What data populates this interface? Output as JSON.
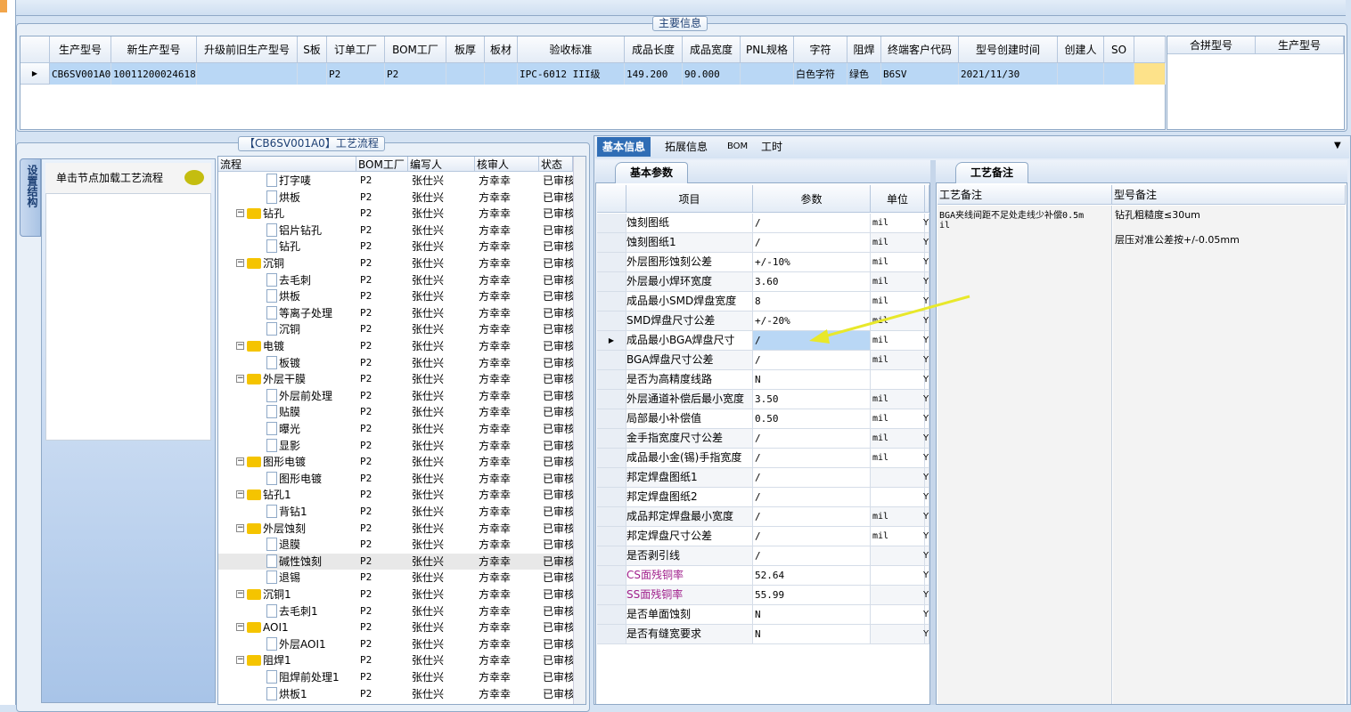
{
  "main_info": {
    "title": "主要信息",
    "columns": [
      "生产型号",
      "新生产型号",
      "升级前旧生产型号",
      "S板",
      "订单工厂",
      "BOM工厂",
      "板厚",
      "板材",
      "验收标准",
      "成品长度",
      "成品宽度",
      "PNL规格",
      "字符",
      "阻焊",
      "终端客户代码",
      "型号创建时间",
      "创建人",
      "SO",
      ""
    ],
    "row": [
      "CB6SV001A0",
      "10011200024618",
      "",
      "",
      "P2",
      "P2",
      "",
      "",
      "IPC-6012 III级",
      "149.200",
      "90.000",
      "",
      "白色字符",
      "绿色",
      "B6SV",
      "2021/11/30",
      "",
      "",
      ""
    ],
    "merge_columns": [
      "合拼型号",
      "生产型号"
    ]
  },
  "flow": {
    "title": "【CB6SV001A0】工艺流程",
    "side_tab": "设置结构",
    "hint": "单击节点加载工艺流程",
    "columns": [
      "流程",
      "BOM工厂",
      "编写人",
      "核审人",
      "状态"
    ],
    "rows": [
      {
        "name": "打字唛",
        "level": 2,
        "folder": false,
        "bom": "P2",
        "writer": "张仕兴",
        "reviewer": "方幸幸",
        "status": "已审核"
      },
      {
        "name": "烘板",
        "level": 2,
        "folder": false,
        "bom": "P2",
        "writer": "张仕兴",
        "reviewer": "方幸幸",
        "status": "已审核"
      },
      {
        "name": "钻孔",
        "level": 1,
        "folder": true,
        "bom": "P2",
        "writer": "张仕兴",
        "reviewer": "方幸幸",
        "status": "已审核"
      },
      {
        "name": "铝片钻孔",
        "level": 2,
        "folder": false,
        "bom": "P2",
        "writer": "张仕兴",
        "reviewer": "方幸幸",
        "status": "已审核"
      },
      {
        "name": "钻孔",
        "level": 2,
        "folder": false,
        "bom": "P2",
        "writer": "张仕兴",
        "reviewer": "方幸幸",
        "status": "已审核"
      },
      {
        "name": "沉铜",
        "level": 1,
        "folder": true,
        "bom": "P2",
        "writer": "张仕兴",
        "reviewer": "方幸幸",
        "status": "已审核"
      },
      {
        "name": "去毛刺",
        "level": 2,
        "folder": false,
        "bom": "P2",
        "writer": "张仕兴",
        "reviewer": "方幸幸",
        "status": "已审核"
      },
      {
        "name": "烘板",
        "level": 2,
        "folder": false,
        "bom": "P2",
        "writer": "张仕兴",
        "reviewer": "方幸幸",
        "status": "已审核"
      },
      {
        "name": "等离子处理",
        "level": 2,
        "folder": false,
        "bom": "P2",
        "writer": "张仕兴",
        "reviewer": "方幸幸",
        "status": "已审核"
      },
      {
        "name": "沉铜",
        "level": 2,
        "folder": false,
        "bom": "P2",
        "writer": "张仕兴",
        "reviewer": "方幸幸",
        "status": "已审核"
      },
      {
        "name": "电镀",
        "level": 1,
        "folder": true,
        "bom": "P2",
        "writer": "张仕兴",
        "reviewer": "方幸幸",
        "status": "已审核"
      },
      {
        "name": "板镀",
        "level": 2,
        "folder": false,
        "bom": "P2",
        "writer": "张仕兴",
        "reviewer": "方幸幸",
        "status": "已审核"
      },
      {
        "name": "外层干膜",
        "level": 1,
        "folder": true,
        "bom": "P2",
        "writer": "张仕兴",
        "reviewer": "方幸幸",
        "status": "已审核"
      },
      {
        "name": "外层前处理",
        "level": 2,
        "folder": false,
        "bom": "P2",
        "writer": "张仕兴",
        "reviewer": "方幸幸",
        "status": "已审核"
      },
      {
        "name": "贴膜",
        "level": 2,
        "folder": false,
        "bom": "P2",
        "writer": "张仕兴",
        "reviewer": "方幸幸",
        "status": "已审核"
      },
      {
        "name": "曝光",
        "level": 2,
        "folder": false,
        "bom": "P2",
        "writer": "张仕兴",
        "reviewer": "方幸幸",
        "status": "已审核"
      },
      {
        "name": "显影",
        "level": 2,
        "folder": false,
        "bom": "P2",
        "writer": "张仕兴",
        "reviewer": "方幸幸",
        "status": "已审核"
      },
      {
        "name": "图形电镀",
        "level": 1,
        "folder": true,
        "bom": "P2",
        "writer": "张仕兴",
        "reviewer": "方幸幸",
        "status": "已审核"
      },
      {
        "name": "图形电镀",
        "level": 2,
        "folder": false,
        "bom": "P2",
        "writer": "张仕兴",
        "reviewer": "方幸幸",
        "status": "已审核"
      },
      {
        "name": "钻孔1",
        "level": 1,
        "folder": true,
        "bom": "P2",
        "writer": "张仕兴",
        "reviewer": "方幸幸",
        "status": "已审核"
      },
      {
        "name": "背钻1",
        "level": 2,
        "folder": false,
        "bom": "P2",
        "writer": "张仕兴",
        "reviewer": "方幸幸",
        "status": "已审核"
      },
      {
        "name": "外层蚀刻",
        "level": 1,
        "folder": true,
        "bom": "P2",
        "writer": "张仕兴",
        "reviewer": "方幸幸",
        "status": "已审核"
      },
      {
        "name": "退膜",
        "level": 2,
        "folder": false,
        "bom": "P2",
        "writer": "张仕兴",
        "reviewer": "方幸幸",
        "status": "已审核"
      },
      {
        "name": "碱性蚀刻",
        "level": 2,
        "folder": false,
        "bom": "P2",
        "writer": "张仕兴",
        "reviewer": "方幸幸",
        "status": "已审核",
        "selected": true
      },
      {
        "name": "退锡",
        "level": 2,
        "folder": false,
        "bom": "P2",
        "writer": "张仕兴",
        "reviewer": "方幸幸",
        "status": "已审核"
      },
      {
        "name": "沉铜1",
        "level": 1,
        "folder": true,
        "bom": "P2",
        "writer": "张仕兴",
        "reviewer": "方幸幸",
        "status": "已审核"
      },
      {
        "name": "去毛刺1",
        "level": 2,
        "folder": false,
        "bom": "P2",
        "writer": "张仕兴",
        "reviewer": "方幸幸",
        "status": "已审核"
      },
      {
        "name": "AOI1",
        "level": 1,
        "folder": true,
        "bom": "P2",
        "writer": "张仕兴",
        "reviewer": "方幸幸",
        "status": "已审核"
      },
      {
        "name": "外层AOI1",
        "level": 2,
        "folder": false,
        "bom": "P2",
        "writer": "张仕兴",
        "reviewer": "方幸幸",
        "status": "已审核"
      },
      {
        "name": "阻焊1",
        "level": 1,
        "folder": true,
        "bom": "P2",
        "writer": "张仕兴",
        "reviewer": "方幸幸",
        "status": "已审核"
      },
      {
        "name": "阻焊前处理1",
        "level": 2,
        "folder": false,
        "bom": "P2",
        "writer": "张仕兴",
        "reviewer": "方幸幸",
        "status": "已审核"
      },
      {
        "name": "烘板1",
        "level": 2,
        "folder": false,
        "bom": "P2",
        "writer": "张仕兴",
        "reviewer": "方幸幸",
        "status": "已审核"
      }
    ]
  },
  "detail": {
    "tabs": [
      "基本信息",
      "拓展信息",
      "BOM",
      "工时"
    ],
    "active_tab": 0,
    "sub_tab": "基本参数",
    "columns": [
      "项目",
      "参数",
      "单位"
    ],
    "rows": [
      {
        "item": "蚀刻图纸",
        "value": "/",
        "unit": "mil",
        "extra": "Y"
      },
      {
        "item": "蚀刻图纸1",
        "value": "/",
        "unit": "mil",
        "extra": "Y"
      },
      {
        "item": "外层图形蚀刻公差",
        "value": "+/-10%",
        "unit": "mil",
        "extra": "Y"
      },
      {
        "item": "外层最小焊环宽度",
        "value": "3.60",
        "unit": "mil",
        "extra": "Y"
      },
      {
        "item": "成品最小SMD焊盘宽度",
        "value": "8",
        "unit": "mil",
        "extra": "Y"
      },
      {
        "item": "SMD焊盘尺寸公差",
        "value": "+/-20%",
        "unit": "mil",
        "extra": "Y"
      },
      {
        "item": "成品最小BGA焊盘尺寸",
        "value": "/",
        "unit": "mil",
        "extra": "Y",
        "current": true
      },
      {
        "item": "BGA焊盘尺寸公差",
        "value": "/",
        "unit": "mil",
        "extra": "Y"
      },
      {
        "item": "是否为高精度线路",
        "value": "N",
        "unit": "",
        "extra": "Y"
      },
      {
        "item": "外层通道补偿后最小宽度",
        "value": "3.50",
        "unit": "mil",
        "extra": "Y"
      },
      {
        "item": "局部最小补偿值",
        "value": "0.50",
        "unit": "mil",
        "extra": "Y"
      },
      {
        "item": "金手指宽度尺寸公差",
        "value": "/",
        "unit": "mil",
        "extra": "Y"
      },
      {
        "item": "成品最小金(锡)手指宽度",
        "value": "/",
        "unit": "mil",
        "extra": "Y"
      },
      {
        "item": "邦定焊盘图纸1",
        "value": "/",
        "unit": "",
        "extra": "Y"
      },
      {
        "item": "邦定焊盘图纸2",
        "value": "/",
        "unit": "",
        "extra": "Y"
      },
      {
        "item": "成品邦定焊盘最小宽度",
        "value": "/",
        "unit": "mil",
        "extra": "Y"
      },
      {
        "item": "邦定焊盘尺寸公差",
        "value": "/",
        "unit": "mil",
        "extra": "Y"
      },
      {
        "item": "是否剥引线",
        "value": "/",
        "unit": "",
        "extra": "Y"
      },
      {
        "item": "CS面残铜率",
        "value": "52.64",
        "unit": "",
        "extra": "Y",
        "highlight": true
      },
      {
        "item": "SS面残铜率",
        "value": "55.99",
        "unit": "",
        "extra": "Y",
        "highlight": true
      },
      {
        "item": "是否单面蚀刻",
        "value": "N",
        "unit": "",
        "extra": "Y"
      },
      {
        "item": "是否有缝宽要求",
        "value": "N",
        "unit": "",
        "extra": "Y"
      }
    ]
  },
  "remarks": {
    "tab": "工艺备注",
    "columns": [
      "工艺备注",
      "型号备注"
    ],
    "process_remark": "BGA夹线间距不足处走线少补偿0.5mil",
    "model_remark_lines": [
      "钻孔粗糙度≤30um",
      "层压对准公差按+/-0.05mm"
    ]
  },
  "colors": {
    "accent": "#2f6db5",
    "selection": "#b9d7f5",
    "highlight_text": "#a0208c",
    "arrow": "#e8e82a"
  }
}
